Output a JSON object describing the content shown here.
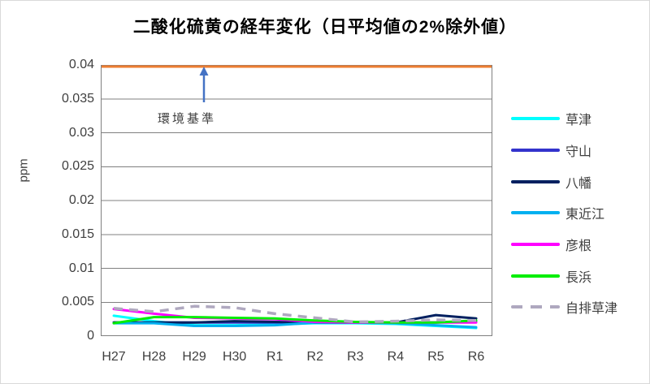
{
  "title": "二酸化硫黄の経年変化（日平均値の2%除外値）",
  "chart_data": {
    "type": "line",
    "title": "二酸化硫黄の経年変化（日平均値の2%除外値）",
    "xlabel": "",
    "ylabel": "ppm",
    "ylim": [
      0,
      0.04
    ],
    "grid": true,
    "legend_position": "right",
    "categories": [
      "H27",
      "H28",
      "H29",
      "H30",
      "R1",
      "R2",
      "R3",
      "R4",
      "R5",
      "R6"
    ],
    "yticks": [
      {
        "value": 0,
        "label": "0"
      },
      {
        "value": 0.005,
        "label": "0.005"
      },
      {
        "value": 0.01,
        "label": "0.01"
      },
      {
        "value": 0.015,
        "label": "0.015"
      },
      {
        "value": 0.02,
        "label": "0.02"
      },
      {
        "value": 0.025,
        "label": "0.025"
      },
      {
        "value": 0.03,
        "label": "0.03"
      },
      {
        "value": 0.035,
        "label": "0.035"
      },
      {
        "value": 0.04,
        "label": "0.04"
      }
    ],
    "series": [
      {
        "name": "草津",
        "color": "#00FFFF",
        "dash": false,
        "values": [
          0.003,
          0.0022,
          0.0016,
          0.0016,
          0.0017,
          0.0019,
          0.0019,
          0.0018,
          0.0015,
          0.0012
        ]
      },
      {
        "name": "守山",
        "color": "#3333CC",
        "dash": false,
        "values": [
          0.002,
          0.002,
          0.002,
          0.002,
          0.002,
          0.002,
          0.002,
          0.002,
          0.002,
          0.0022
        ]
      },
      {
        "name": "八幡",
        "color": "#002060",
        "dash": false,
        "values": [
          0.002,
          0.002,
          0.002,
          0.0022,
          0.0021,
          0.002,
          0.002,
          0.002,
          0.0031,
          0.0026
        ]
      },
      {
        "name": "東近江",
        "color": "#00B0F0",
        "dash": false,
        "values": [
          0.0019,
          0.0019,
          0.0015,
          0.0015,
          0.0016,
          0.002,
          0.002,
          0.0019,
          0.0016,
          0.0013
        ]
      },
      {
        "name": "彦根",
        "color": "#FF00FF",
        "dash": false,
        "values": [
          0.004,
          0.0033,
          0.0027,
          0.0026,
          0.0025,
          0.0021,
          0.002,
          0.002,
          0.002,
          0.002
        ]
      },
      {
        "name": "長浜",
        "color": "#00EE00",
        "dash": false,
        "values": [
          0.0019,
          0.0028,
          0.0028,
          0.0027,
          0.0026,
          0.0023,
          0.0021,
          0.002,
          0.002,
          0.0023
        ]
      },
      {
        "name": "自排草津",
        "color": "#AFA8BF",
        "dash": true,
        "values": [
          0.0041,
          0.0036,
          0.0044,
          0.0042,
          0.0033,
          0.0027,
          0.0021,
          0.0022,
          0.0024,
          0.0023
        ]
      }
    ],
    "standard_line": {
      "value": 0.04,
      "label": "環境基準",
      "color": "#ED7D31",
      "arrow_color": "#4472C4"
    }
  },
  "colors": {
    "grid": "#808080",
    "plot_border": "#808080",
    "axis_text": "#3f3f3f"
  }
}
